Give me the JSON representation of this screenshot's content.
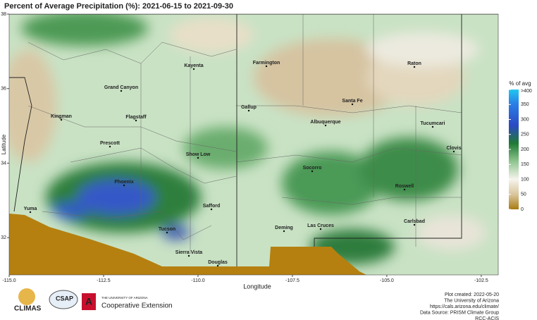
{
  "map": {
    "title": "Percent of Average Precipitation (%): 2021-06-15 to 2021-09-30",
    "xlabel": "Longitude",
    "ylabel": "Latitude",
    "xlim": [
      -115,
      -102.05
    ],
    "ylim": [
      31,
      38
    ],
    "xticks": [
      {
        "value": -115,
        "label": "-115.0"
      },
      {
        "value": -112.5,
        "label": "-112.5"
      },
      {
        "value": -110,
        "label": "-110.0"
      },
      {
        "value": -107.5,
        "label": "-107.5"
      },
      {
        "value": -105,
        "label": "-105.0"
      },
      {
        "value": -102.5,
        "label": "-102.5"
      }
    ],
    "yticks": [
      32,
      34,
      36,
      38
    ],
    "cities": [
      "Kayenta",
      "Farmington",
      "Grand Canyon",
      "Raton",
      "Santa Fe",
      "Kingman",
      "Flagstaff",
      "Gallup",
      "Albuquerque",
      "Tucumcari",
      "Prescott",
      "Show Low",
      "Clovis",
      "Socorro",
      "Phoenix",
      "Roswell",
      "Safford",
      "Yuma",
      "Deming",
      "Las Cruces",
      "Carlsbad",
      "Tucson",
      "Sierra Vista",
      "Douglas"
    ],
    "legend": {
      "title": "% of avg",
      "lim": [
        0,
        400
      ],
      "ticks": [
        0,
        50,
        100,
        150,
        200,
        250,
        300,
        350,
        {
          "value": 400,
          "label": ">400"
        }
      ]
    }
  },
  "footer": {
    "lines": [
      "Plot created: 2022-05-20",
      "The University of Arizona",
      "https://cals.arizona.edu/climate/",
      "Data Source: PRISM Climate Group",
      "RCC-ACIS"
    ]
  },
  "logos": {
    "climas": "CLIMAS",
    "csap": "CSAP",
    "university": "THE UNIVERSITY OF ARIZONA",
    "extension": "Cooperative Extension"
  }
}
